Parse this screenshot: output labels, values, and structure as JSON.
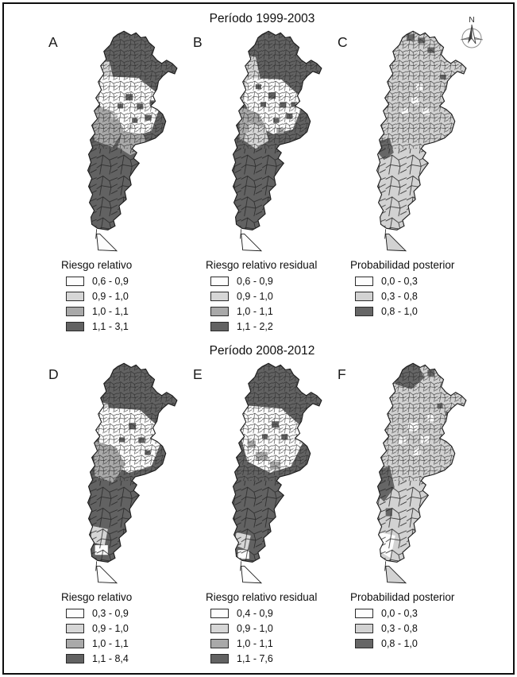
{
  "figure": {
    "compass_label": "N",
    "sections": [
      {
        "title": "Período 1999-2003",
        "panels": [
          {
            "letter": "A",
            "legend_title": "Riesgo relativo",
            "classes": [
              {
                "label": "0,6 - 0,9",
                "color": "#fdfdfd"
              },
              {
                "label": "0,9 - 1,0",
                "color": "#d6d6d6"
              },
              {
                "label": "1,0 - 1,1",
                "color": "#a9a9a9"
              },
              {
                "label": "1,1 - 3,1",
                "color": "#626262"
              }
            ]
          },
          {
            "letter": "B",
            "legend_title": "Riesgo relativo residual",
            "classes": [
              {
                "label": "0,6 - 0,9",
                "color": "#fdfdfd"
              },
              {
                "label": "0,9 - 1,0",
                "color": "#d6d6d6"
              },
              {
                "label": "1,0 - 1,1",
                "color": "#a9a9a9"
              },
              {
                "label": "1,1 - 2,2",
                "color": "#626262"
              }
            ]
          },
          {
            "letter": "C",
            "legend_title": "Probabilidad posterior",
            "classes": [
              {
                "label": "0,0 - 0,3",
                "color": "#fdfdfd"
              },
              {
                "label": "0,3 - 0,8",
                "color": "#d2d2d2"
              },
              {
                "label": "0,8 - 1,0",
                "color": "#666666"
              }
            ]
          }
        ]
      },
      {
        "title": "Período 2008-2012",
        "panels": [
          {
            "letter": "D",
            "legend_title": "Riesgo relativo",
            "classes": [
              {
                "label": "0,3 - 0,9",
                "color": "#fdfdfd"
              },
              {
                "label": "0,9 - 1,0",
                "color": "#d6d6d6"
              },
              {
                "label": "1,0 - 1,1",
                "color": "#a9a9a9"
              },
              {
                "label": "1,1 - 8,4",
                "color": "#626262"
              }
            ]
          },
          {
            "letter": "E",
            "legend_title": "Riesgo relativo residual",
            "classes": [
              {
                "label": "0,4 - 0,9",
                "color": "#fdfdfd"
              },
              {
                "label": "0,9 - 1,0",
                "color": "#d6d6d6"
              },
              {
                "label": "1,0 - 1,1",
                "color": "#a9a9a9"
              },
              {
                "label": "1,1 - 7,6",
                "color": "#626262"
              }
            ]
          },
          {
            "letter": "F",
            "legend_title": "Probabilidad posterior",
            "classes": [
              {
                "label": "0,0 - 0,3",
                "color": "#fdfdfd"
              },
              {
                "label": "0,3 - 0,8",
                "color": "#d2d2d2"
              },
              {
                "label": "0,8 - 1,0",
                "color": "#666666"
              }
            ]
          }
        ]
      }
    ]
  },
  "colors": {
    "outline": "#1c1c1c",
    "mesh": "#2a2a2a",
    "frame": "#0e0e0e",
    "background": "#ffffff"
  }
}
